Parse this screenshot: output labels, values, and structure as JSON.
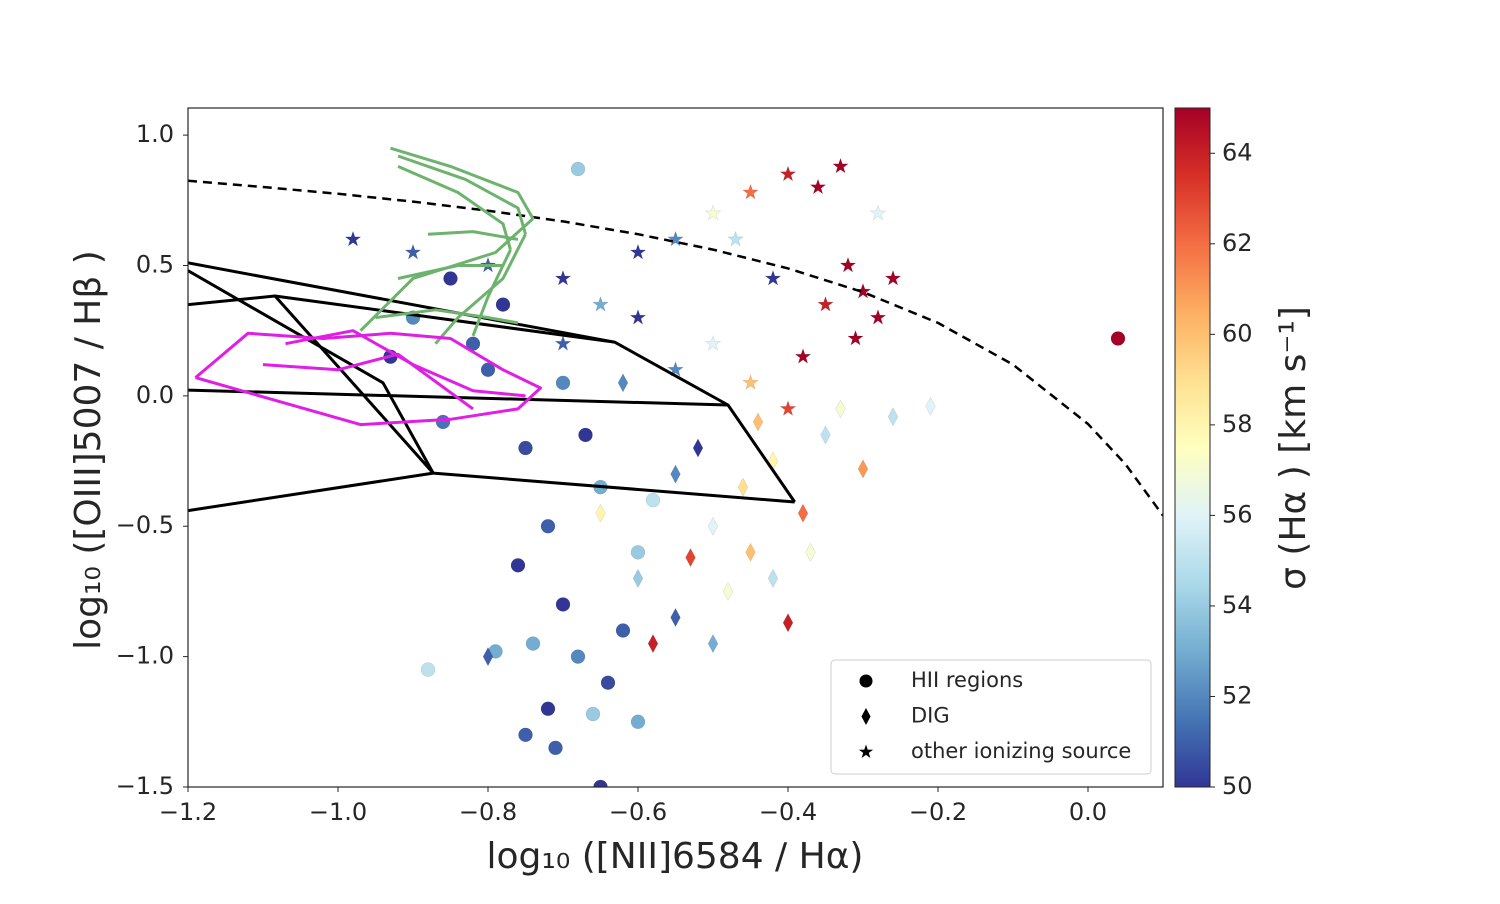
{
  "chart_data": {
    "type": "scatter",
    "xlabel": "log₁₀ ([NII]6584 / Hα)",
    "ylabel": "log₁₀ ([OIII]5007 / Hβ )",
    "xlim": [
      -1.2,
      0.1
    ],
    "ylim": [
      -1.5,
      1.104
    ],
    "xticks": [
      {
        "value": -1.2,
        "label": "−1.2"
      },
      {
        "value": -1.0,
        "label": "−1.0"
      },
      {
        "value": -0.8,
        "label": "−0.8"
      },
      {
        "value": -0.6,
        "label": "−0.6"
      },
      {
        "value": -0.4,
        "label": "−0.4"
      },
      {
        "value": -0.2,
        "label": "−0.2"
      },
      {
        "value": 0.0,
        "label": "0.0"
      }
    ],
    "yticks": [
      {
        "value": -1.5,
        "label": "−1.5"
      },
      {
        "value": -1.0,
        "label": "−1.0"
      },
      {
        "value": -0.5,
        "label": "−0.5"
      },
      {
        "value": 0.0,
        "label": "0.0"
      },
      0.5,
      {
        "value": 1.0,
        "label": "1.0"
      }
    ],
    "legend": "lower right",
    "colorbar": {
      "label": "σ (Hα ) [km s⁻¹]",
      "lim": [
        50,
        65
      ],
      "ticks": [
        50,
        52,
        54,
        56,
        58,
        60,
        62,
        64
      ],
      "colors": [
        "#313695",
        "#4575b4",
        "#74add1",
        "#abd9e9",
        "#e0f3f8",
        "#ffffbf",
        "#fee090",
        "#fdae61",
        "#f46d43",
        "#d73027",
        "#a50026"
      ]
    },
    "series": [
      {
        "name": "HII regions",
        "marker": "circle",
        "x": [
          -0.78,
          -0.8,
          -0.75,
          -0.72,
          -0.7,
          -0.68,
          -0.72,
          -0.75,
          -0.65,
          -0.66,
          -0.88,
          -0.79,
          -0.68,
          -0.85,
          -0.9,
          -0.65,
          -0.6,
          -0.62,
          0.04,
          -0.76,
          -0.82,
          -0.7,
          -0.64,
          -0.58,
          -0.74,
          -0.93,
          -0.86,
          -0.67,
          -0.71,
          -0.6
        ],
        "values": [
          0.35,
          0.1,
          -0.2,
          -0.5,
          -0.8,
          -1.0,
          -1.2,
          -1.3,
          -1.5,
          -1.22,
          -1.05,
          -0.98,
          0.87,
          0.45,
          0.3,
          -0.35,
          -0.6,
          -0.9,
          0.22,
          -0.65,
          0.2,
          0.05,
          -1.1,
          -0.4,
          -0.95,
          0.15,
          -0.1,
          -0.15,
          -1.35,
          -1.25
        ],
        "sigma": [
          50,
          51,
          50.5,
          51,
          50,
          52,
          50,
          51,
          50,
          54,
          55,
          53,
          54,
          50,
          52,
          53,
          54,
          51,
          65,
          50,
          51,
          52,
          50.5,
          55,
          53,
          50,
          51.5,
          50,
          51,
          53
        ]
      },
      {
        "name": "DIG",
        "marker": "diamond",
        "x": [
          -0.55,
          -0.5,
          -0.45,
          -0.42,
          -0.38,
          -0.4,
          -0.48,
          -0.52,
          -0.6,
          -0.55,
          -0.35,
          -0.3,
          -0.26,
          -0.21,
          -0.44,
          -0.58,
          -0.5,
          -0.46,
          -0.33,
          -0.65,
          -0.62,
          -0.8,
          -0.53,
          -0.42,
          -0.37
        ],
        "values": [
          -0.3,
          -0.5,
          -0.6,
          -0.25,
          -0.45,
          -0.87,
          -0.75,
          -0.2,
          -0.7,
          -0.85,
          -0.15,
          -0.28,
          -0.08,
          -0.04,
          -0.1,
          -0.95,
          -0.95,
          -0.35,
          -0.05,
          -0.45,
          0.05,
          -1.0,
          -0.62,
          -0.7,
          -0.6
        ],
        "sigma": [
          52,
          56,
          60,
          58,
          62,
          64,
          57,
          50,
          54,
          51,
          55,
          61,
          55,
          56,
          60,
          64,
          53,
          59,
          57,
          58,
          52,
          51,
          63,
          55,
          57
        ]
      },
      {
        "name": "other ionizing source",
        "marker": "star",
        "x": [
          -0.3,
          -0.28,
          -0.32,
          -0.26,
          -0.35,
          -0.31,
          -0.36,
          -0.4,
          -0.33,
          -0.45,
          -0.5,
          -0.55,
          -0.6,
          -0.7,
          -0.8,
          -0.98,
          -0.9,
          -0.65,
          -0.5,
          -0.45,
          -0.4,
          -0.55,
          -0.47,
          -0.42,
          -0.28,
          -0.7,
          -0.38,
          -0.6
        ],
        "values": [
          0.4,
          0.3,
          0.5,
          0.45,
          0.35,
          0.22,
          0.8,
          0.85,
          0.88,
          0.78,
          0.7,
          0.6,
          0.55,
          0.45,
          0.5,
          0.6,
          0.55,
          0.35,
          0.2,
          0.05,
          -0.05,
          0.1,
          0.6,
          0.45,
          0.7,
          0.2,
          0.15,
          0.3
        ],
        "sigma": [
          65,
          65,
          65,
          65,
          64,
          65,
          65,
          64,
          65,
          62,
          57,
          52,
          50,
          50,
          51,
          50,
          51,
          53,
          56,
          60,
          63,
          52,
          55,
          50,
          56,
          51,
          65,
          50
        ]
      }
    ],
    "lines": [
      {
        "color": "#000000",
        "dash": true,
        "x": [
          -1.2,
          -1.1,
          -1.0,
          -0.9,
          -0.8,
          -0.7,
          -0.6,
          -0.5,
          -0.4,
          -0.3,
          -0.2,
          -0.1,
          0.0,
          0.05,
          0.1
        ],
        "values": [
          0.825,
          0.801,
          0.775,
          0.745,
          0.71,
          0.669,
          0.62,
          0.561,
          0.489,
          0.398,
          0.28,
          0.12,
          -0.108,
          -0.262,
          -0.459
        ]
      },
      {
        "color": "#000000",
        "x": [
          -1.2,
          -0.631,
          -0.48,
          -0.391
        ],
        "values": [
          0.51,
          0.206,
          -0.035,
          -0.407
        ]
      },
      {
        "color": "#000000",
        "x": [
          -1.2,
          -1.084,
          -0.873,
          -0.391
        ],
        "values": [
          0.35,
          0.383,
          -0.296,
          -0.407
        ]
      },
      {
        "color": "#000000",
        "x": [
          -1.2,
          -0.873
        ],
        "values": [
          -0.44,
          -0.296
        ]
      },
      {
        "color": "#000000",
        "x": [
          -1.2,
          -0.94,
          -0.873
        ],
        "values": [
          0.48,
          0.05,
          -0.296
        ]
      },
      {
        "color": "#000000",
        "x": [
          -1.2,
          -0.48
        ],
        "values": [
          0.022,
          -0.035
        ]
      },
      {
        "color": "#000000",
        "x": [
          -1.084,
          -0.631
        ],
        "values": [
          0.383,
          0.206
        ]
      },
      {
        "color": "#6db36d",
        "x": [
          -0.93,
          -0.85,
          -0.76,
          -0.74
        ],
        "values": [
          0.95,
          0.88,
          0.78,
          0.68
        ]
      },
      {
        "color": "#6db36d",
        "x": [
          -0.92,
          -0.83,
          -0.76,
          -0.75
        ],
        "values": [
          0.92,
          0.83,
          0.72,
          0.62
        ]
      },
      {
        "color": "#6db36d",
        "x": [
          -0.92,
          -0.84,
          -0.78,
          -0.77
        ],
        "values": [
          0.88,
          0.78,
          0.66,
          0.56
        ]
      },
      {
        "color": "#6db36d",
        "x": [
          -0.74,
          -0.79,
          -0.9,
          -0.97
        ],
        "values": [
          0.68,
          0.55,
          0.45,
          0.25
        ]
      },
      {
        "color": "#6db36d",
        "x": [
          -0.75,
          -0.78,
          -0.84,
          -0.87
        ],
        "values": [
          0.62,
          0.45,
          0.3,
          0.2
        ]
      },
      {
        "color": "#6db36d",
        "x": [
          -0.77,
          -0.8,
          -0.82
        ],
        "values": [
          0.56,
          0.38,
          0.23
        ]
      },
      {
        "color": "#6db36d",
        "x": [
          -0.95,
          -0.87,
          -0.8,
          -0.76
        ],
        "values": [
          0.3,
          0.33,
          0.3,
          0.28
        ]
      },
      {
        "color": "#6db36d",
        "x": [
          -0.92,
          -0.84,
          -0.78
        ],
        "values": [
          0.45,
          0.5,
          0.5
        ]
      },
      {
        "color": "#6db36d",
        "x": [
          -0.88,
          -0.82,
          -0.76
        ],
        "values": [
          0.62,
          0.63,
          0.6
        ]
      },
      {
        "color": "#e01ee6",
        "x": [
          -1.19,
          -1.12,
          -1.02,
          -0.93,
          -0.85,
          -0.78,
          -0.73,
          -0.76,
          -0.85,
          -0.97,
          -1.19
        ],
        "values": [
          0.07,
          0.24,
          0.22,
          0.24,
          0.22,
          0.1,
          0.03,
          -0.05,
          -0.09,
          -0.11,
          0.07
        ]
      },
      {
        "color": "#e01ee6",
        "x": [
          -1.07,
          -0.98,
          -0.9,
          -0.82,
          -0.75
        ],
        "values": [
          0.2,
          0.25,
          0.12,
          0.02,
          0.0
        ]
      },
      {
        "color": "#e01ee6",
        "x": [
          -1.1,
          -1.0,
          -0.92,
          -0.82
        ],
        "values": [
          0.12,
          0.1,
          0.16,
          -0.05
        ]
      }
    ]
  }
}
